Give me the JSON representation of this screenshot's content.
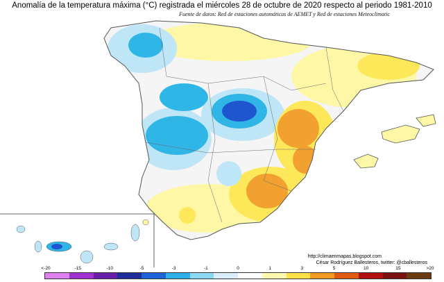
{
  "map": {
    "title": "Anomalía de la temperatura máxima (°C) registrada el miércoles 28 de octubre de 2020 respecto al periodo 1981-2010",
    "subtitle": "Fuente de datos: Red de estaciones automáticas de AEMET y Red de estaciones Meteoclimatic",
    "credits_url": "http://climaenmapas.blogspot.com",
    "credits_author": "César Rodríguez Ballesteros, twitter: @cballesteros"
  },
  "legend": {
    "labels": [
      "<-20",
      "-15",
      "-10",
      "-5",
      "-3",
      "-1",
      "0",
      "1",
      "3",
      "5",
      "10",
      "15",
      ">20"
    ],
    "colors": [
      "#e080f0",
      "#a030d0",
      "#6a1fa8",
      "#1f2f9a",
      "#1e62d8",
      "#2fb0e8",
      "#8ad8f4",
      "#d9eefa",
      "#ffffff",
      "#fff9b0",
      "#fde04a",
      "#f59a20",
      "#e05a10",
      "#b01010",
      "#7a1010",
      "#6a3a10"
    ]
  },
  "colors": {
    "very_cold": "#1f55cf",
    "cold": "#2fb5e6",
    "cool": "#bfe6f7",
    "neutral": "#f5f5f5",
    "warm": "#fdf7a6",
    "warmer": "#fde85a",
    "hot": "#f2a030",
    "hotter": "#e07020",
    "border": "#555555"
  }
}
